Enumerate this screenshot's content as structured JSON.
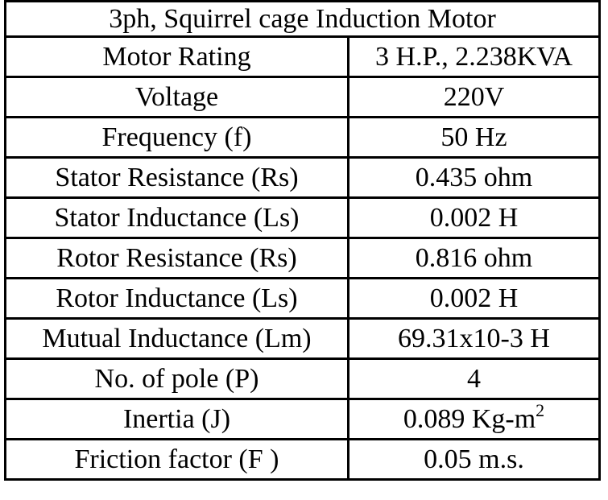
{
  "table": {
    "title": "3ph, Squirrel cage Induction Motor",
    "rows": [
      {
        "param": "Motor Rating",
        "value": "3 H.P., 2.238KVA"
      },
      {
        "param": "Voltage",
        "value": "220V"
      },
      {
        "param": "Frequency (f)",
        "value": "50 Hz"
      },
      {
        "param": "Stator Resistance (Rs)",
        "value": "0.435 ohm"
      },
      {
        "param": "Stator Inductance (Ls)",
        "value": "0.002 H"
      },
      {
        "param": "Rotor Resistance (Rs)",
        "value": "0.816 ohm"
      },
      {
        "param": "Rotor Inductance (Ls)",
        "value": "0.002 H"
      },
      {
        "param": "Mutual  Inductance (Lm)",
        "value": "69.31x10-3 H"
      },
      {
        "param": "No. of pole (P)",
        "value": "4"
      },
      {
        "param": "Inertia (J)",
        "value": "0.089 Kg-m",
        "sup": "2"
      },
      {
        "param": "Friction factor (F )",
        "value": "0.05  m.s."
      }
    ]
  }
}
